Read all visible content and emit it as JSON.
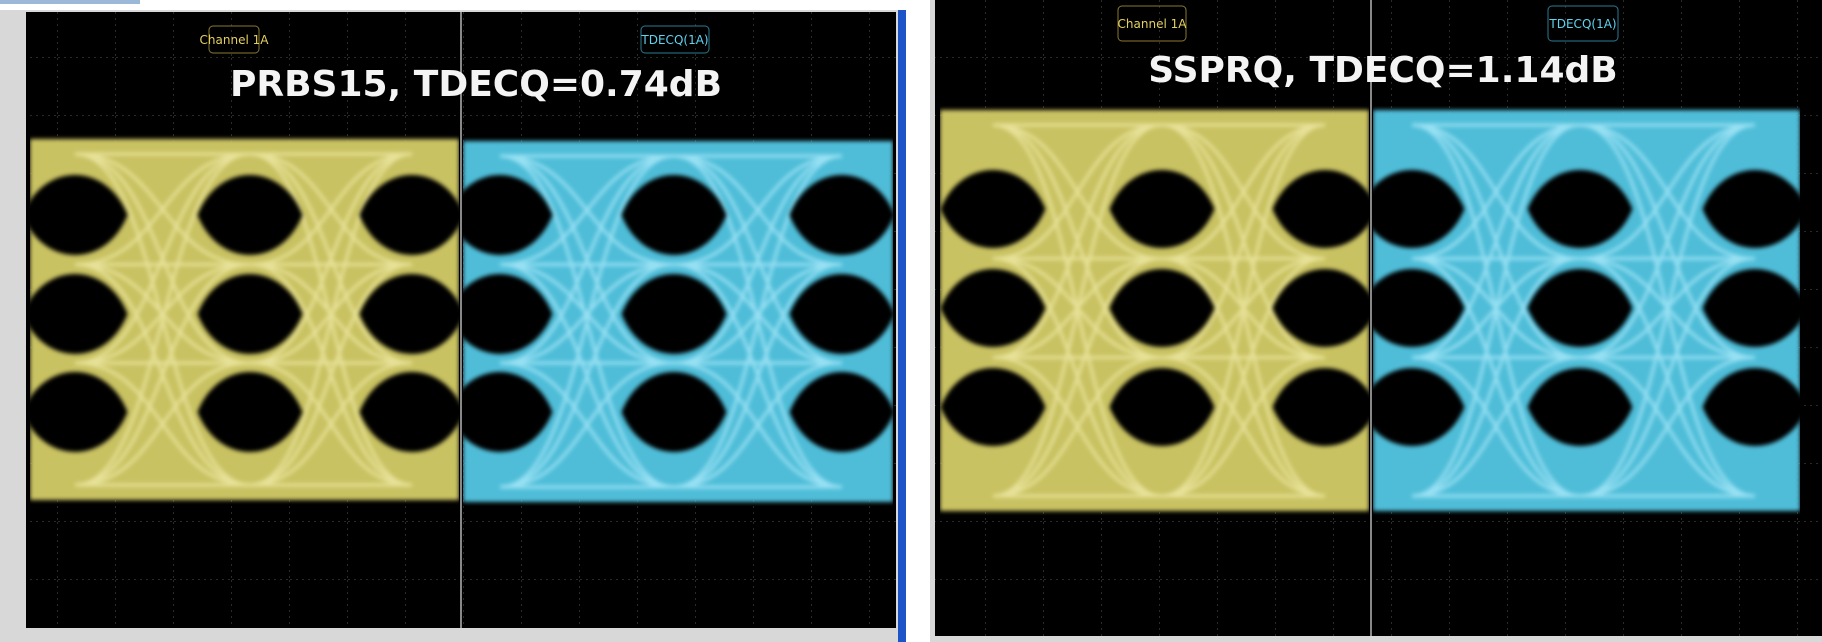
{
  "panels": [
    {
      "title": "PRBS15, TDECQ=0.74dB",
      "left_label": "Channel 1A",
      "right_label": "TDECQ(1A)"
    },
    {
      "title": "SSPRQ, TDECQ=1.14dB",
      "left_label": "Channel 1A",
      "right_label": "TDECQ(1A)"
    }
  ]
}
